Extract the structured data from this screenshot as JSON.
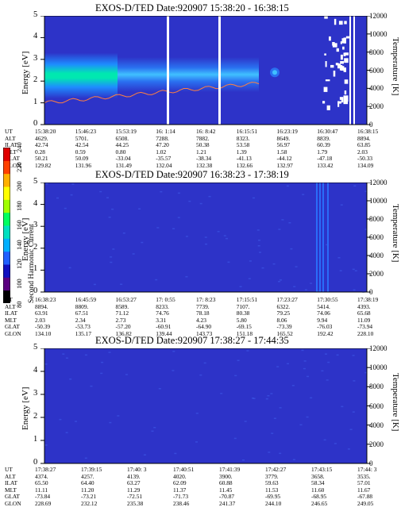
{
  "chart_data": [
    {
      "type": "heatmap",
      "title": "EXOS-D/TED   Date:920907  15:38:20 - 16:38:15",
      "ylabel": "Energy [eV]",
      "y2label": "Temperature [K]",
      "ylim": [
        0,
        5
      ],
      "y2lim": [
        0,
        12000
      ],
      "yticks": [
        0,
        1,
        2,
        3,
        4,
        5
      ],
      "y2ticks": [
        0,
        2000,
        4000,
        6000,
        8000,
        10000,
        12000
      ],
      "row_labels": [
        "UT",
        "ALT",
        "ILAT",
        "MLT",
        "GLAT",
        "GLON"
      ],
      "columns": [
        [
          "15:38:20",
          "4629.",
          "42.74",
          "0.28",
          "50.21",
          "129.82"
        ],
        [
          "15:46:23",
          "5701.",
          "42.54",
          "0.59",
          "50.09",
          "131.96"
        ],
        [
          "15:53:19",
          "6508.",
          "44.25",
          "0.80",
          "-33.04",
          "131.49"
        ],
        [
          "16: 1:14",
          "7288.",
          "47.20",
          "1.02",
          "-35.57",
          "132.04"
        ],
        [
          "16: 8:42",
          "7882.",
          "50.38",
          "1.21",
          "-38.34",
          "132.38"
        ],
        [
          "16:15:51",
          "8323.",
          "53.58",
          "1.39",
          "-41.13",
          "132.66"
        ],
        [
          "16:23:19",
          "8649.",
          "56.97",
          "1.58",
          "-44.12",
          "132.97"
        ],
        [
          "16:30:47",
          "8839.",
          "60.39",
          "1.79",
          "-47.18",
          "133.42"
        ],
        [
          "16:38:15",
          "8894.",
          "63.85",
          "2.03",
          "-50.33",
          "134.09"
        ]
      ]
    },
    {
      "type": "heatmap",
      "title": "EXOS-D/TED   Date:920907  16:38:23 - 17:38:19",
      "ylabel": "Energy [eV]",
      "y2label": "Temperature [K]",
      "ylim": [
        0,
        5
      ],
      "y2lim": [
        0,
        12000
      ],
      "yticks": [
        0,
        1,
        2,
        3,
        4,
        5
      ],
      "y2ticks": [
        0,
        2000,
        4000,
        6000,
        8000,
        10000,
        12000
      ],
      "row_labels": [
        "UT",
        "ALT",
        "ILAT",
        "MLT",
        "GLAT",
        "GLON"
      ],
      "columns": [
        [
          "16:38:23",
          "8894.",
          "63.91",
          "2.03",
          "-50.39",
          "134.10"
        ],
        [
          "16:45:59",
          "8809.",
          "67.51",
          "2.34",
          "-53.73",
          "135.17"
        ],
        [
          "16:53:27",
          "8589.",
          "71.12",
          "2.73",
          "-57.20",
          "136.82"
        ],
        [
          "17: 0:55",
          "8233.",
          "74.76",
          "3.31",
          "-60.91",
          "139.44"
        ],
        [
          "17: 8:23",
          "7739.",
          "78.18",
          "4.23",
          "-64.90",
          "143.73"
        ],
        [
          "17:15:51",
          "7107.",
          "80.38",
          "5.80",
          "-69.15",
          "151.18"
        ],
        [
          "17:23:27",
          "6322.",
          "79.25",
          "8.06",
          "-73.39",
          "165.52"
        ],
        [
          "17:30:55",
          "5414.",
          "74.06",
          "9.94",
          "-76.03",
          "192.42"
        ],
        [
          "17:38:19",
          "4393.",
          "65.68",
          "11.09",
          "-73.94",
          "228.10"
        ]
      ]
    },
    {
      "type": "heatmap",
      "title": "EXOS-D/TED   Date:920907  17:38:27 - 17:44:35",
      "ylabel": "Energy [eV]",
      "y2label": "Temperature [K]",
      "ylim": [
        0,
        5
      ],
      "y2lim": [
        0,
        12000
      ],
      "yticks": [
        0,
        1,
        2,
        3,
        4,
        5
      ],
      "y2ticks": [
        0,
        2000,
        4000,
        6000,
        8000,
        10000,
        12000
      ],
      "row_labels": [
        "UT",
        "ALT",
        "ILAT",
        "MLT",
        "GLAT",
        "GLON"
      ],
      "columns": [
        [
          "17:38:27",
          "4374.",
          "65.50",
          "11.11",
          "-73.84",
          "228.69"
        ],
        [
          "17:39:15",
          "4257.",
          "64.40",
          "11.20",
          "-73.21",
          "232.12"
        ],
        [
          "17:40: 3",
          "4139.",
          "63.27",
          "11.29",
          "-72.51",
          "235.38"
        ],
        [
          "17:40:51",
          "4020.",
          "62.09",
          "11.37",
          "-71.73",
          "238.46"
        ],
        [
          "17:41:39",
          "3900.",
          "60.88",
          "11.45",
          "-70.87",
          "241.37"
        ],
        [
          "17:42:27",
          "3779.",
          "59.63",
          "11.53",
          "-69.95",
          "244.10"
        ],
        [
          "17:43:15",
          "3658.",
          "58.34",
          "11.60",
          "-68.95",
          "246.65"
        ],
        [
          "17:44: 3",
          "3535.",
          "57.01",
          "11.67",
          "-67.88",
          "249.05"
        ]
      ]
    }
  ],
  "colorbar": {
    "label": "Second Harmonic Current",
    "ticks": [
      "80",
      "100",
      "120",
      "140",
      "160",
      "180",
      "200",
      "220",
      "240"
    ],
    "range": [
      80,
      240
    ],
    "colors": [
      "#000000",
      "#5a0080",
      "#1010c0",
      "#2060ff",
      "#00b0ff",
      "#00e0c0",
      "#00ff60",
      "#a0ff00",
      "#ffff00",
      "#ffb000",
      "#ff4000",
      "#e00000"
    ]
  },
  "background_color": "#2d33c8"
}
